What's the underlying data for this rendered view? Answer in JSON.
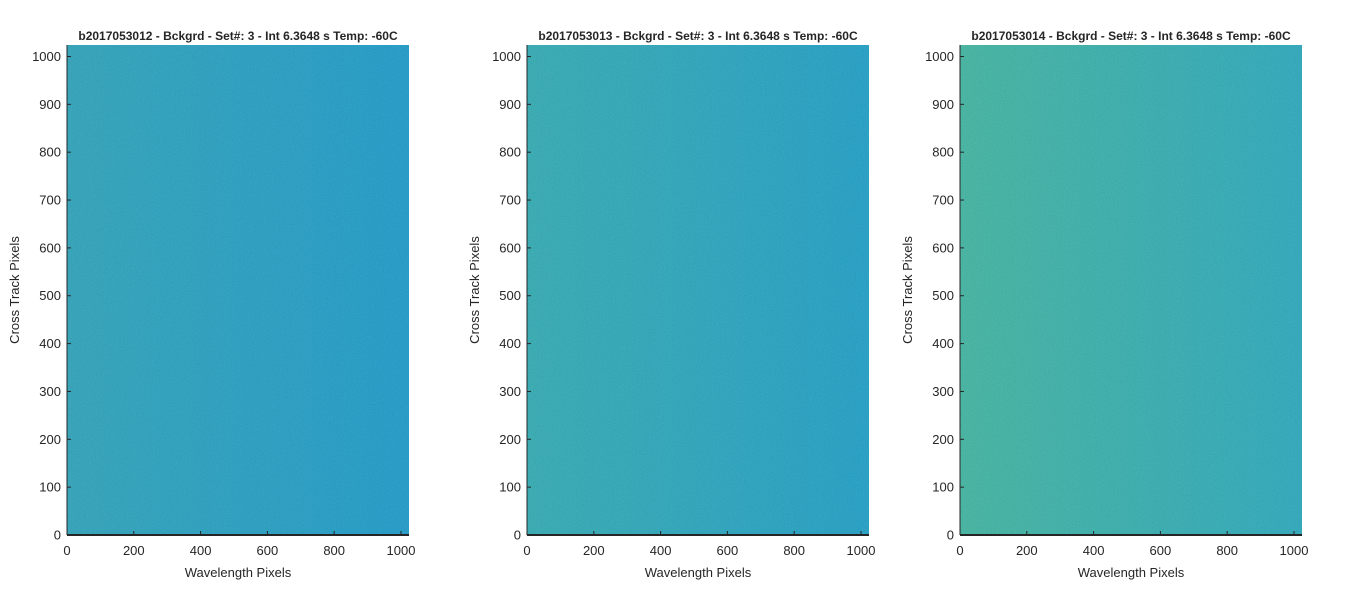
{
  "chart_data": [
    {
      "type": "heatmap",
      "title": "b2017053012 - Bckgrd - Set#: 3 - Int 6.3648 s Temp: -60C",
      "xlabel": "Wavelength Pixels",
      "ylabel": "Cross Track Pixels",
      "xlim": [
        0,
        1024
      ],
      "ylim": [
        0,
        1024
      ],
      "xticks": [
        0,
        200,
        400,
        600,
        800,
        1000
      ],
      "yticks": [
        0,
        100,
        200,
        300,
        400,
        500,
        600,
        700,
        800,
        900,
        1000
      ],
      "colors": {
        "left": "#21a0b8",
        "right": "#0f96c8"
      },
      "grid": false
    },
    {
      "type": "heatmap",
      "title": "b2017053013 - Bckgrd - Set#: 3 - Int 6.3648 s Temp: -60C",
      "xlabel": "Wavelength Pixels",
      "ylabel": "Cross Track Pixels",
      "xlim": [
        0,
        1024
      ],
      "ylim": [
        0,
        1024
      ],
      "xticks": [
        0,
        200,
        400,
        600,
        800,
        1000
      ],
      "yticks": [
        0,
        100,
        200,
        300,
        400,
        500,
        600,
        700,
        800,
        900,
        1000
      ],
      "colors": {
        "left": "#26a8b0",
        "right": "#129bc5"
      },
      "grid": false
    },
    {
      "type": "heatmap",
      "title": "b2017053014 - Bckgrd - Set#: 3 - Int 6.3648 s Temp: -60C",
      "xlabel": "Wavelength Pixels",
      "ylabel": "Cross Track Pixels",
      "xlim": [
        0,
        1024
      ],
      "ylim": [
        0,
        1024
      ],
      "xticks": [
        0,
        200,
        400,
        600,
        800,
        1000
      ],
      "yticks": [
        0,
        100,
        200,
        300,
        400,
        500,
        600,
        700,
        800,
        900,
        1000
      ],
      "colors": {
        "left": "#36b29c",
        "right": "#1ea5ba"
      },
      "grid": false
    }
  ]
}
